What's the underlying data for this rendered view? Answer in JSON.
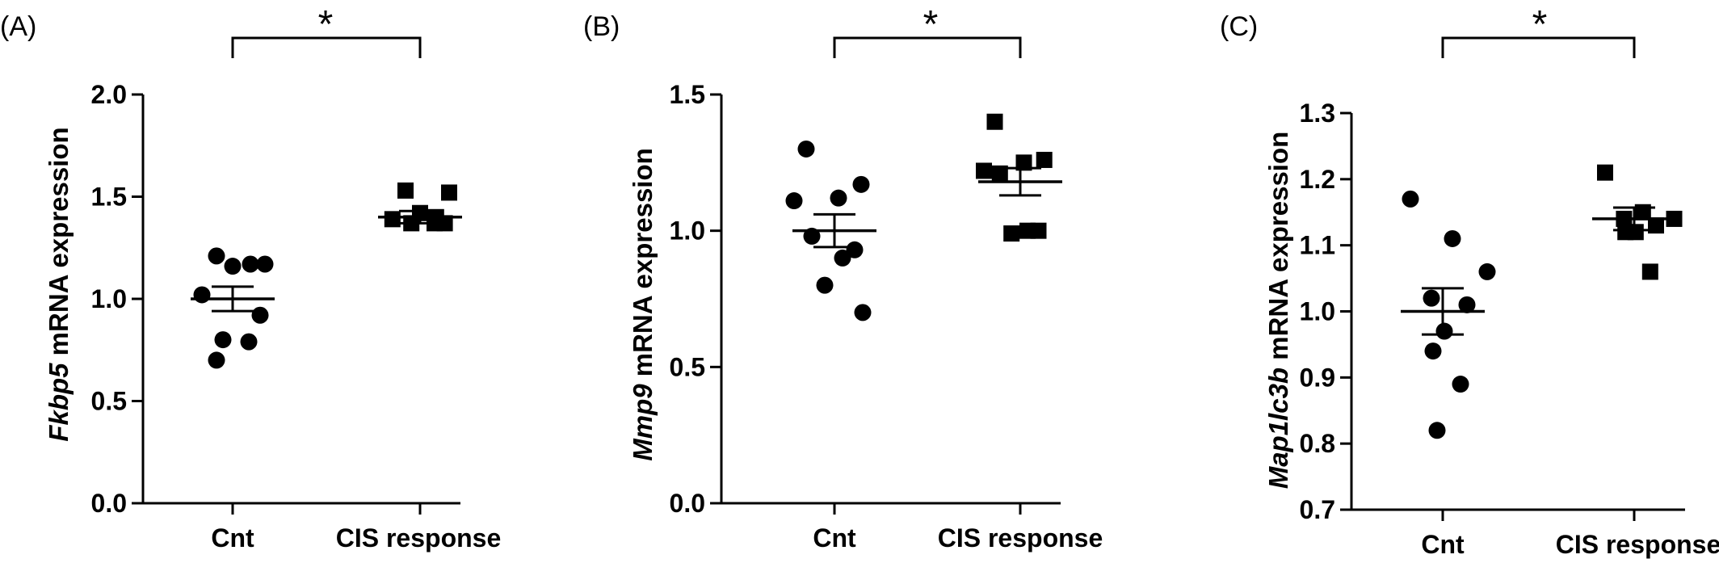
{
  "chart_data": [
    {
      "panel": "(A)",
      "type": "scatter",
      "ylabel_italic": "Fkbp5",
      "ylabel_rest": " mRNA expression",
      "categories": [
        "Cnt",
        "CIS response"
      ],
      "ylim": [
        0.0,
        2.0
      ],
      "yticks": [
        "0.0",
        "0.5",
        "1.0",
        "1.5",
        "2.0"
      ],
      "yticks_values": [
        0.0,
        0.5,
        1.0,
        1.5,
        2.0
      ],
      "series": [
        {
          "category": "Cnt",
          "marker": "circle",
          "values": [
            1.21,
            1.17,
            1.16,
            1.17,
            1.02,
            0.92,
            0.8,
            0.79,
            0.7
          ],
          "mean": 1.0,
          "sem": 0.06
        },
        {
          "category": "CIS response",
          "marker": "square",
          "values": [
            1.53,
            1.52,
            1.42,
            1.4,
            1.39,
            1.37,
            1.37,
            1.37
          ],
          "mean": 1.4,
          "sem": 0.03
        }
      ],
      "significance": "*"
    },
    {
      "panel": "(B)",
      "type": "scatter",
      "ylabel_italic": "Mmp9",
      "ylabel_rest": " mRNA expression",
      "categories": [
        "Cnt",
        "CIS response"
      ],
      "ylim": [
        0.0,
        1.5
      ],
      "yticks": [
        "0.0",
        "0.5",
        "1.0",
        "1.5"
      ],
      "yticks_values": [
        0.0,
        0.5,
        1.0,
        1.5
      ],
      "series": [
        {
          "category": "Cnt",
          "marker": "circle",
          "values": [
            1.3,
            1.17,
            1.12,
            1.11,
            0.98,
            0.93,
            0.9,
            0.8,
            0.7
          ],
          "mean": 1.0,
          "sem": 0.06
        },
        {
          "category": "CIS response",
          "marker": "square",
          "values": [
            1.4,
            1.26,
            1.25,
            1.22,
            1.21,
            1.0,
            1.0,
            0.99
          ],
          "mean": 1.18,
          "sem": 0.05
        }
      ],
      "significance": "*"
    },
    {
      "panel": "(C)",
      "type": "scatter",
      "ylabel_italic": "Map1lc3b",
      "ylabel_rest": " mRNA expression",
      "categories": [
        "Cnt",
        "CIS response"
      ],
      "ylim": [
        0.7,
        1.3
      ],
      "yticks": [
        "0.7",
        "0.8",
        "0.9",
        "1.0",
        "1.1",
        "1.2",
        "1.3"
      ],
      "yticks_values": [
        0.7,
        0.8,
        0.9,
        1.0,
        1.1,
        1.2,
        1.3
      ],
      "series": [
        {
          "category": "Cnt",
          "marker": "circle",
          "values": [
            1.17,
            1.11,
            1.06,
            1.02,
            1.01,
            0.97,
            0.94,
            0.89,
            0.82
          ],
          "mean": 1.0,
          "sem": 0.035
        },
        {
          "category": "CIS response",
          "marker": "square",
          "values": [
            1.21,
            1.15,
            1.14,
            1.14,
            1.13,
            1.12,
            1.12,
            1.06
          ],
          "mean": 1.14,
          "sem": 0.017
        }
      ],
      "significance": "*"
    }
  ]
}
